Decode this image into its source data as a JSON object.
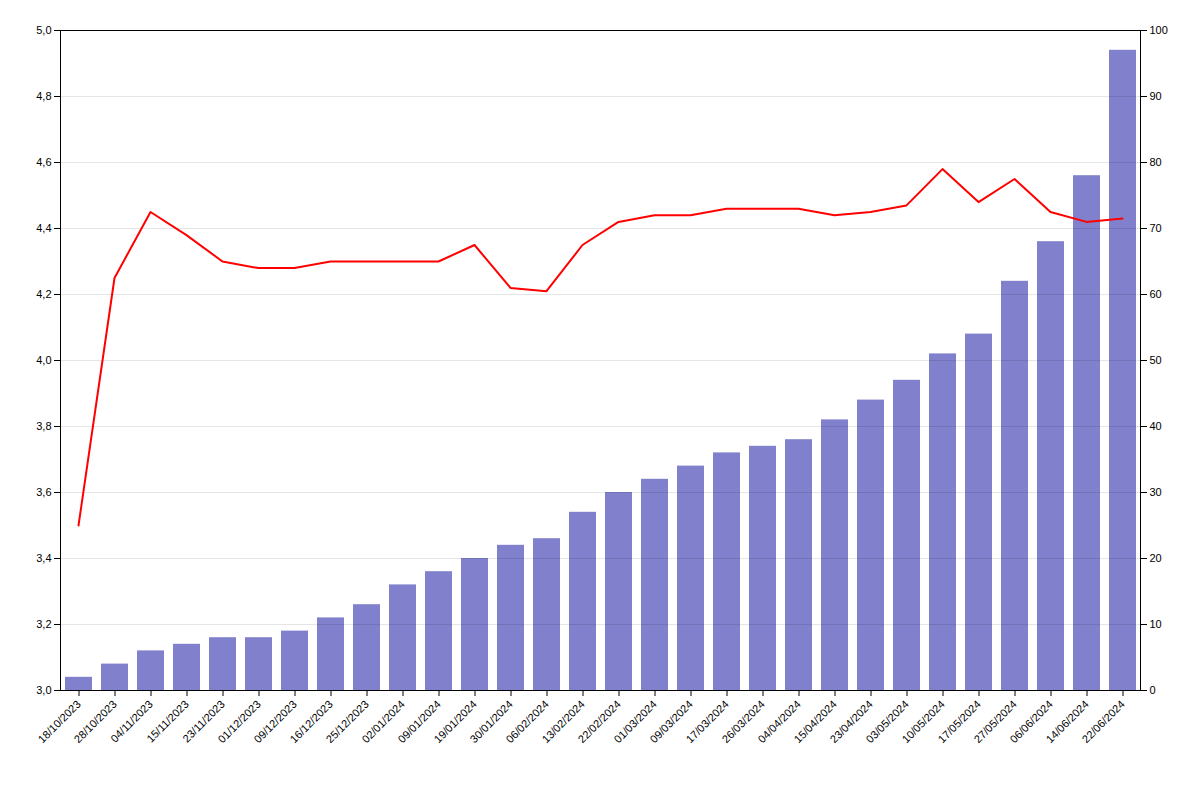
{
  "chart_data": {
    "type": "combo",
    "categories": [
      "18/10/2023",
      "28/10/2023",
      "04/11/2023",
      "15/11/2023",
      "23/11/2023",
      "01/12/2023",
      "09/12/2023",
      "16/12/2023",
      "25/12/2023",
      "02/01/2024",
      "09/01/2024",
      "19/01/2024",
      "30/01/2024",
      "06/02/2024",
      "13/02/2024",
      "22/02/2024",
      "01/03/2024",
      "09/03/2024",
      "17/03/2024",
      "26/03/2024",
      "04/04/2024",
      "15/04/2024",
      "23/04/2024",
      "03/05/2024",
      "10/05/2024",
      "17/05/2024",
      "27/05/2024",
      "06/06/2024",
      "14/06/2024",
      "22/06/2024"
    ],
    "series": [
      {
        "type": "bar",
        "axis": "y2",
        "color": "#8080CC",
        "values": [
          2,
          4,
          6,
          7,
          8,
          8,
          9,
          11,
          13,
          16,
          18,
          20,
          22,
          23,
          27,
          30,
          32,
          34,
          36,
          37,
          38,
          41,
          44,
          47,
          51,
          54,
          62,
          68,
          78,
          97
        ]
      },
      {
        "type": "line",
        "axis": "y",
        "color": "#FF0000",
        "values": [
          3.5,
          4.25,
          4.45,
          4.38,
          4.3,
          4.28,
          4.28,
          4.3,
          4.3,
          4.3,
          4.3,
          4.35,
          4.22,
          4.21,
          4.35,
          4.42,
          4.44,
          4.44,
          4.46,
          4.46,
          4.46,
          4.44,
          4.45,
          4.47,
          4.58,
          4.48,
          4.55,
          4.45,
          4.42,
          4.43
        ]
      }
    ],
    "ylim": [
      3.0,
      5.0
    ],
    "yticks": [
      {
        "value": 3.0,
        "label": "3,0"
      },
      {
        "value": 3.2,
        "label": "3,2"
      },
      {
        "value": 3.4,
        "label": "3,4"
      },
      {
        "value": 3.6,
        "label": "3,6"
      },
      {
        "value": 3.8,
        "label": "3,8"
      },
      {
        "value": 4.0,
        "label": "4,0"
      },
      {
        "value": 4.2,
        "label": "4,2"
      },
      {
        "value": 4.4,
        "label": "4,4"
      },
      {
        "value": 4.6,
        "label": "4,6"
      },
      {
        "value": 4.8,
        "label": "4,8"
      },
      {
        "value": 5.0,
        "label": "5,0"
      }
    ],
    "y2lim": [
      0,
      100
    ],
    "y2ticks": [
      0,
      10,
      20,
      30,
      40,
      50,
      60,
      70,
      80,
      90,
      100
    ],
    "grid": true
  }
}
